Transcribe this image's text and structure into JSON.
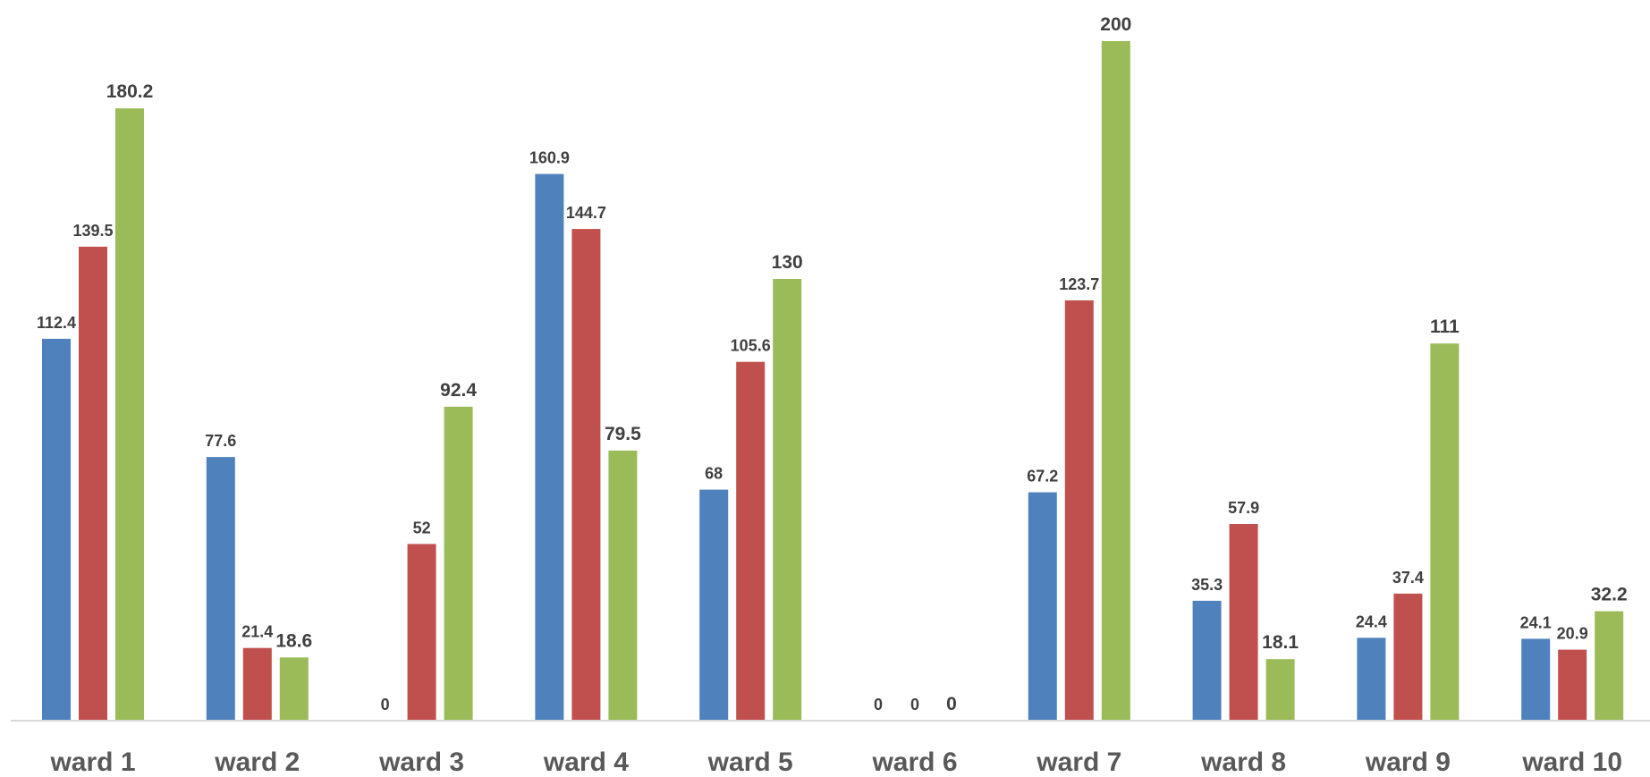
{
  "chart_data": {
    "type": "bar",
    "title": "",
    "xlabel": "",
    "ylabel": "",
    "categories": [
      "ward 1",
      "ward 2",
      "ward 3",
      "ward 4",
      "ward 5",
      "ward 6",
      "ward 7",
      "ward 8",
      "ward 9",
      "ward 10"
    ],
    "series": [
      {
        "color": "#4F81BD",
        "values": [
          112.4,
          77.6,
          0,
          160.9,
          68,
          0,
          67.2,
          35.3,
          24.4,
          24.1
        ]
      },
      {
        "color": "#C0504D",
        "values": [
          139.5,
          21.4,
          52,
          144.7,
          105.6,
          0,
          123.7,
          57.9,
          37.4,
          20.9
        ]
      },
      {
        "color": "#9BBB59",
        "values": [
          180.2,
          18.6,
          92.4,
          79.5,
          130,
          0,
          200,
          18.1,
          111,
          32.2
        ]
      }
    ],
    "ylim": [
      0,
      200
    ],
    "grid": false,
    "legend": "none",
    "data_labels": true
  }
}
